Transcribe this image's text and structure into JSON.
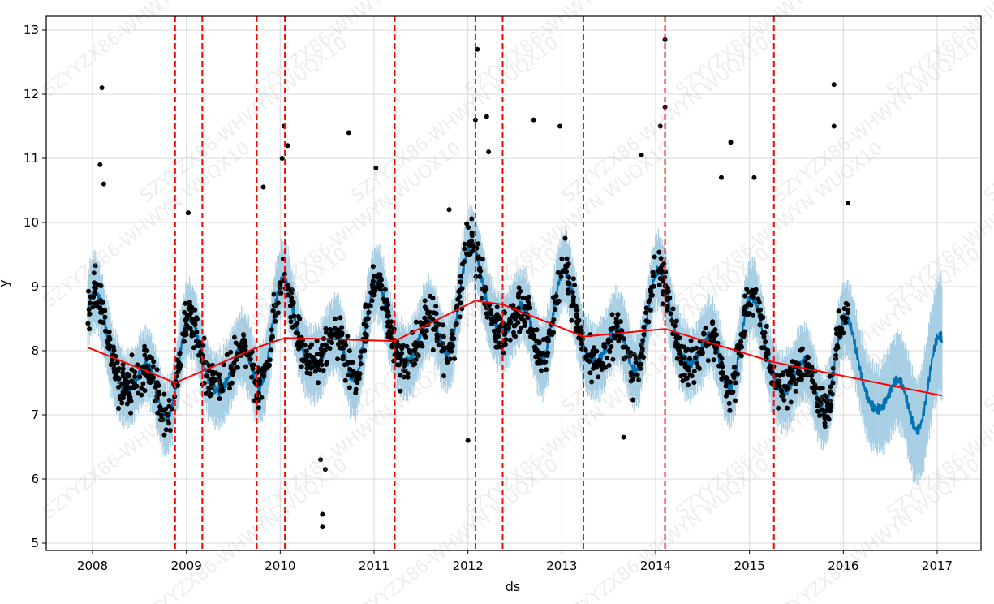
{
  "chart_data": {
    "type": "line",
    "xlabel": "ds",
    "ylabel": "y",
    "x_range": [
      2007.6,
      2017.5
    ],
    "ylim": [
      4.9,
      13.25
    ],
    "x_ticks": [
      2008,
      2009,
      2010,
      2011,
      2012,
      2013,
      2014,
      2015,
      2016,
      2017
    ],
    "x_tick_labels": [
      "2008",
      "2009",
      "2010",
      "2011",
      "2012",
      "2013",
      "2014",
      "2015",
      "2016",
      "2017"
    ],
    "y_ticks": [
      5,
      6,
      7,
      8,
      9,
      10,
      11,
      12,
      13
    ],
    "y_tick_labels": [
      "5",
      "6",
      "7",
      "8",
      "9",
      "10",
      "11",
      "12",
      "13"
    ],
    "grid": true,
    "colors": {
      "observed": "#000000",
      "forecast": "#0072B2",
      "uncertainty": "#9ecae1",
      "trend": "#ff0000",
      "changepoint": "#ff0000",
      "grid": "#d9d9d9"
    },
    "changepoints": [
      2008.88,
      2009.17,
      2009.75,
      2010.05,
      2011.22,
      2012.08,
      2012.37,
      2013.23,
      2014.1,
      2015.26
    ],
    "trend": {
      "x": [
        2007.95,
        2008.88,
        2009.17,
        2009.75,
        2010.05,
        2011.22,
        2012.08,
        2012.37,
        2013.23,
        2014.1,
        2015.26,
        2017.05
      ],
      "y": [
        8.05,
        7.5,
        7.68,
        8.05,
        8.2,
        8.15,
        8.78,
        8.72,
        8.22,
        8.34,
        7.82,
        7.3
      ]
    },
    "forecast_end": 2017.05,
    "history_end": 2016.05,
    "series": [
      {
        "name": "observed y",
        "kind": "points"
      },
      {
        "name": "yhat",
        "kind": "line"
      },
      {
        "name": "uncertainty interval",
        "kind": "band"
      }
    ],
    "outliers": [
      {
        "x": 2008.1,
        "y": 12.1
      },
      {
        "x": 2008.08,
        "y": 10.9
      },
      {
        "x": 2008.12,
        "y": 10.6
      },
      {
        "x": 2009.02,
        "y": 10.15
      },
      {
        "x": 2010.04,
        "y": 11.5
      },
      {
        "x": 2010.08,
        "y": 11.2
      },
      {
        "x": 2010.02,
        "y": 11.0
      },
      {
        "x": 2010.73,
        "y": 11.4
      },
      {
        "x": 2011.02,
        "y": 10.85
      },
      {
        "x": 2012.1,
        "y": 12.7
      },
      {
        "x": 2012.08,
        "y": 11.6
      },
      {
        "x": 2012.2,
        "y": 11.65
      },
      {
        "x": 2012.22,
        "y": 11.1
      },
      {
        "x": 2012.7,
        "y": 11.6
      },
      {
        "x": 2012.98,
        "y": 11.5
      },
      {
        "x": 2014.1,
        "y": 12.85
      },
      {
        "x": 2014.1,
        "y": 11.8
      },
      {
        "x": 2014.05,
        "y": 11.5
      },
      {
        "x": 2013.85,
        "y": 11.05
      },
      {
        "x": 2014.8,
        "y": 11.25
      },
      {
        "x": 2015.9,
        "y": 12.15
      },
      {
        "x": 2015.9,
        "y": 11.5
      },
      {
        "x": 2012.0,
        "y": 6.6
      },
      {
        "x": 2010.45,
        "y": 5.45
      },
      {
        "x": 2010.45,
        "y": 5.25
      },
      {
        "x": 2010.48,
        "y": 6.15
      },
      {
        "x": 2010.43,
        "y": 6.3
      },
      {
        "x": 2013.66,
        "y": 6.65
      },
      {
        "x": 2016.05,
        "y": 10.3
      },
      {
        "x": 2009.82,
        "y": 10.55
      },
      {
        "x": 2011.8,
        "y": 10.2
      },
      {
        "x": 2014.7,
        "y": 10.7
      },
      {
        "x": 2015.05,
        "y": 10.7
      }
    ]
  },
  "watermark": "SZYYZX86-WHWYN  WUQX10"
}
